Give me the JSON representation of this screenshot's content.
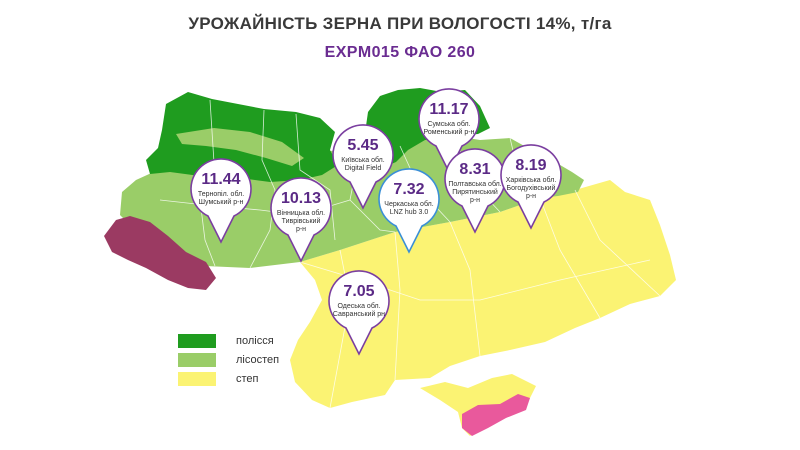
{
  "title": "УРОЖАЙНІСТЬ ЗЕРНА ПРИ ВОЛОГОСТІ 14%, т/га",
  "subtitle": "EXPM015 ФАО 260",
  "colors": {
    "polissia": "#1f9c1f",
    "lisostep": "#9acd68",
    "step": "#fbf373",
    "carpathians": "#9b3a62",
    "crimea_mountains": "#e9599c",
    "accent": "#7b3fa0",
    "accent_lnz": "#3b8fd6"
  },
  "pins": [
    {
      "value": "11.44",
      "label1": "Тернопіл. обл.",
      "label2": "Шумський р-н",
      "label3": ""
    },
    {
      "value": "10.13",
      "label1": "Вінницька обл.",
      "label2": "Тиврівський",
      "label3": "р-н"
    },
    {
      "value": "5.45",
      "label1": "Київська обл.",
      "label2": "Digital Field",
      "label3": ""
    },
    {
      "value": "7.32",
      "label1": "Черкаська обл.",
      "label2": "LNZ hub 3.0",
      "label3": ""
    },
    {
      "value": "11.17",
      "label1": "Сумська обл.",
      "label2": "Роменський р-н",
      "label3": ""
    },
    {
      "value": "8.31",
      "label1": "Полтавська обл.",
      "label2": "Пирятинський",
      "label3": "р-н"
    },
    {
      "value": "8.19",
      "label1": "Харківська обл.",
      "label2": "Богодухівський",
      "label3": "р-н"
    },
    {
      "value": "7.05",
      "label1": "Одеська обл.",
      "label2": "Савранський рн",
      "label3": ""
    }
  ],
  "legend": [
    {
      "label": "полісся",
      "color": "#1f9c1f"
    },
    {
      "label": "лісостеп",
      "color": "#9acd68"
    },
    {
      "label": "степ",
      "color": "#fbf373"
    }
  ]
}
